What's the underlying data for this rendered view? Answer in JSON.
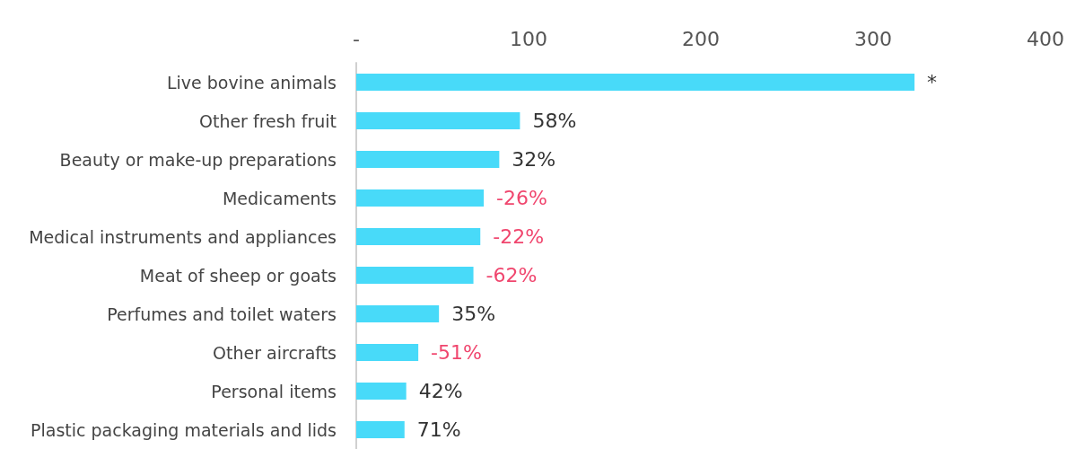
{
  "chart_data": {
    "type": "bar",
    "orientation": "horizontal",
    "categories": [
      "Live bovine animals",
      "Other fresh fruit",
      "Beauty or make-up preparations",
      "Medicaments",
      "Medical instruments and appliances",
      "Meat of sheep or goats",
      "Perfumes and toilet waters",
      "Other aircrafts",
      "Personal items",
      "Plastic packaging materials and lids"
    ],
    "values": [
      324,
      95,
      83,
      74,
      72,
      68,
      48,
      36,
      29,
      28
    ],
    "annotations": [
      {
        "text": "*",
        "x": 324,
        "y": "Live bovine animals"
      },
      {
        "text": "58%",
        "x": 95,
        "y": "Other fresh fruit"
      },
      {
        "text": "32%",
        "x": 83,
        "y": "Beauty or make-up preparations"
      },
      {
        "text": "-26%",
        "x": 74,
        "y": "Medicaments"
      },
      {
        "text": "-22%",
        "x": 72,
        "y": "Medical instruments and appliances"
      },
      {
        "text": "-62%",
        "x": 68,
        "y": "Meat of sheep or goats"
      },
      {
        "text": "35%",
        "x": 48,
        "y": "Perfumes and toilet waters"
      },
      {
        "text": "-51%",
        "x": 36,
        "y": "Other aircrafts"
      },
      {
        "text": "42%",
        "x": 29,
        "y": "Personal items"
      },
      {
        "text": "71%",
        "x": 28,
        "y": "Plastic packaging materials and lids"
      }
    ],
    "color": "#48daf9",
    "xlim": [
      0,
      400
    ],
    "xticks": [
      {
        "value": 0,
        "label": "-"
      },
      100,
      200,
      300,
      400
    ],
    "grid": false
  }
}
